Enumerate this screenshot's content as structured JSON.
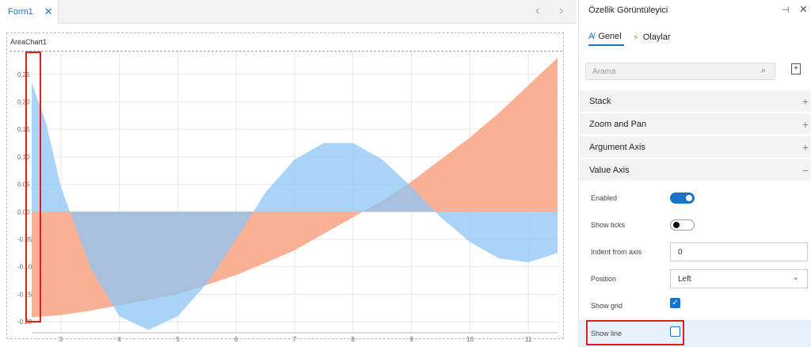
{
  "tabs": {
    "form_tab": "Form1"
  },
  "chart": {
    "title": "AreaChart1",
    "colors": {
      "series1": "#f9a78a",
      "series2": "#8cc6f5",
      "overlap": "#9a9fba"
    },
    "chart_data": {
      "type": "area",
      "x": [
        2.5,
        2.75,
        3.0,
        3.5,
        4.0,
        4.5,
        5.0,
        5.5,
        6.0,
        6.5,
        7.0,
        7.5,
        8.0,
        8.5,
        9.0,
        9.5,
        10.0,
        10.5,
        11.0,
        11.5
      ],
      "series": [
        {
          "values": [
            -0.192,
            -0.19,
            -0.188,
            -0.18,
            -0.17,
            -0.16,
            -0.15,
            -0.133,
            -0.115,
            -0.093,
            -0.07,
            -0.04,
            -0.01,
            0.02,
            0.055,
            0.095,
            0.135,
            0.18,
            0.23,
            0.28
          ]
        },
        {
          "values": [
            0.235,
            0.16,
            0.045,
            -0.1,
            -0.19,
            -0.215,
            -0.19,
            -0.13,
            -0.05,
            0.035,
            0.095,
            0.125,
            0.125,
            0.095,
            0.045,
            -0.01,
            -0.055,
            -0.085,
            -0.092,
            -0.075
          ]
        }
      ],
      "xticks": [
        3,
        4,
        5,
        6,
        7,
        8,
        9,
        10,
        11
      ],
      "yticks": [
        "0.25",
        "0.20",
        "0.15",
        "0.10",
        "0.05",
        "0.00",
        "-0.05",
        "-0.10",
        "-0.15",
        "-0.20"
      ],
      "xlim": [
        2.5,
        11.5
      ],
      "ylim": [
        -0.22,
        0.29
      ],
      "grid": true
    }
  },
  "panel": {
    "title": "Özellik Görüntüleyici",
    "tab_general": "Genel",
    "tab_events": "Olaylar",
    "search_placeholder": "Arama",
    "sections": {
      "stack": "Stack",
      "zoom": "Zoom and Pan",
      "argument_axis": "Argument Axis",
      "value_axis": "Value Axis"
    },
    "props": {
      "enabled": "Enabled",
      "show_ticks": "Show ticks",
      "indent": "Indent from axis",
      "indent_value": "0",
      "position": "Position",
      "position_value": "Left",
      "show_grid": "Show grid",
      "show_line": "Show line"
    }
  }
}
